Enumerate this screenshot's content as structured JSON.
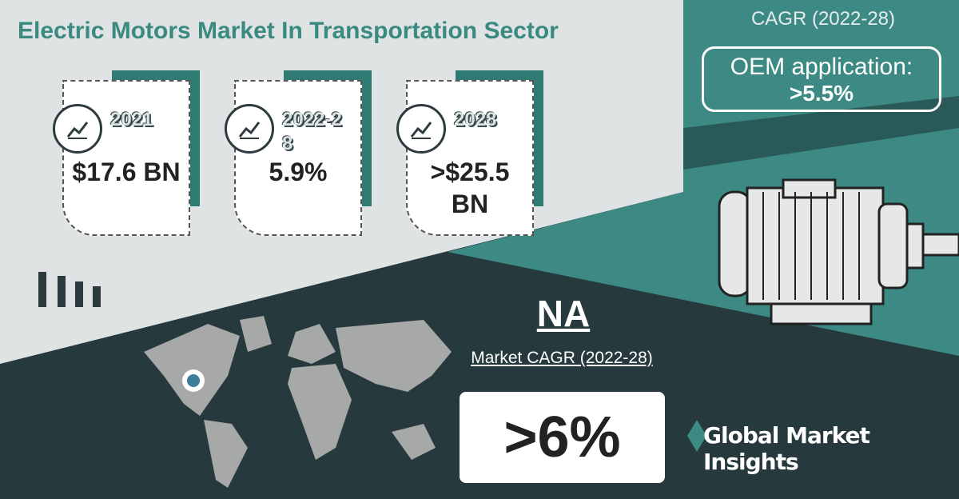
{
  "title": "Electric Motors Market In Transportation Sector",
  "cards": [
    {
      "year": "2021",
      "value": "$17.6 BN"
    },
    {
      "year": "2022-28",
      "value": "5.9%"
    },
    {
      "year": "2028",
      "value": ">$25.5 BN"
    }
  ],
  "cagr_heading": "CAGR (2022-28)",
  "oem_label": "OEM application:",
  "oem_value": ">5.5%",
  "region": "NA",
  "region_caption": "Market CAGR (2022-28)",
  "region_value": ">6%",
  "brand": "Global Market Insights"
}
